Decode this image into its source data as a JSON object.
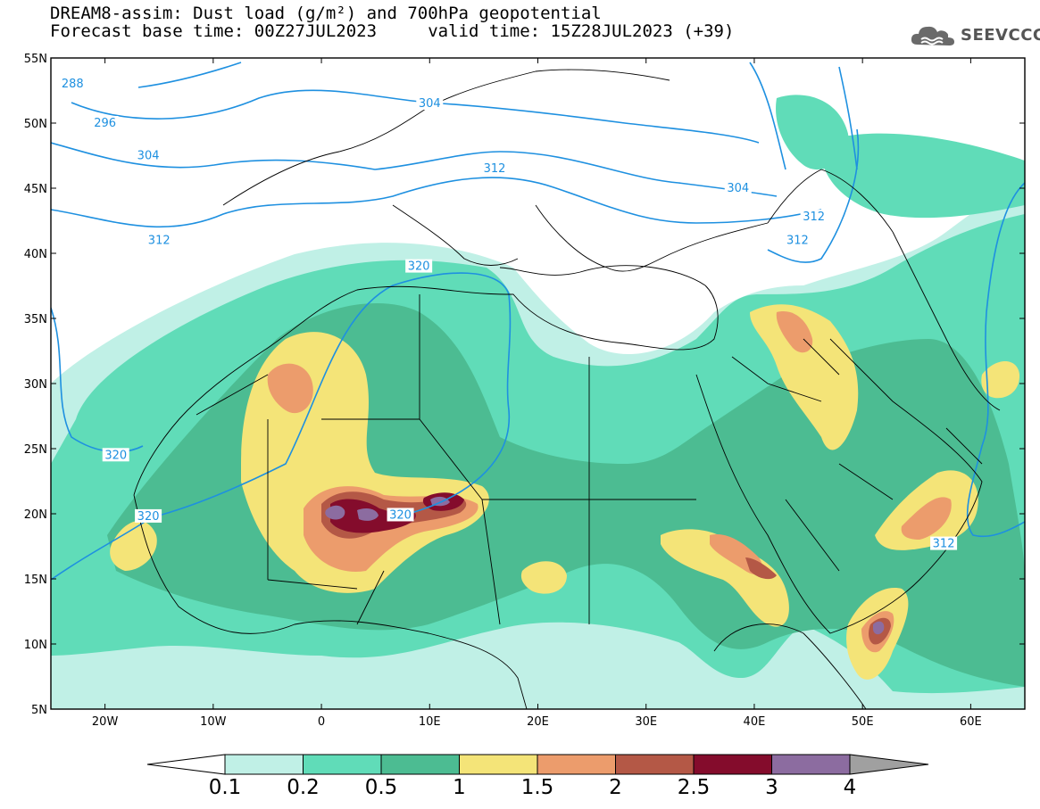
{
  "header": {
    "line1": "DREAM8-assim: Dust load (g/m²) and 700hPa geopotential",
    "line2": "Forecast base time: 00Z27JUL2023     valid time: 15Z28JUL2023 (+39)"
  },
  "logo": {
    "text": "SEEVCCC",
    "icon": "cloud-icon"
  },
  "map": {
    "lat_labels": [
      "55N",
      "50N",
      "45N",
      "40N",
      "35N",
      "30N",
      "25N",
      "20N",
      "15N",
      "10N",
      "5N"
    ],
    "lon_labels": [
      "20W",
      "10W",
      "0",
      "10E",
      "20E",
      "30E",
      "40E",
      "50E",
      "60E"
    ],
    "lon_range": [
      -25,
      65
    ],
    "lat_range": [
      5,
      55
    ],
    "contour_labels": [
      {
        "text": "288",
        "lon": -23,
        "lat": 53
      },
      {
        "text": "296",
        "lon": -20,
        "lat": 50
      },
      {
        "text": "304",
        "lon": -16,
        "lat": 47.5
      },
      {
        "text": "312",
        "lon": -15,
        "lat": 41
      },
      {
        "text": "304",
        "lon": 10,
        "lat": 51.5
      },
      {
        "text": "312",
        "lon": 16,
        "lat": 46.5
      },
      {
        "text": "320",
        "lon": 9,
        "lat": 39
      },
      {
        "text": "304",
        "lon": 38.5,
        "lat": 45
      },
      {
        "text": "312",
        "lon": 45.5,
        "lat": 42.8
      },
      {
        "text": "312",
        "lon": 44,
        "lat": 41
      },
      {
        "text": "320",
        "lon": -19,
        "lat": 24.5
      },
      {
        "text": "320",
        "lon": -16,
        "lat": 19.8
      },
      {
        "text": "320",
        "lon": 7.3,
        "lat": 19.9
      },
      {
        "text": "312",
        "lon": 57.5,
        "lat": 17.7
      }
    ]
  },
  "colorbar": {
    "labels": [
      "0.1",
      "0.2",
      "0.5",
      "1",
      "1.5",
      "2",
      "2.5",
      "3",
      "4"
    ],
    "colors": [
      "#c0f0e6",
      "#60dcb8",
      "#4cbc92",
      "#f4e478",
      "#ec9c6c",
      "#b45846",
      "#840c2c",
      "#8c6ca0"
    ]
  }
}
